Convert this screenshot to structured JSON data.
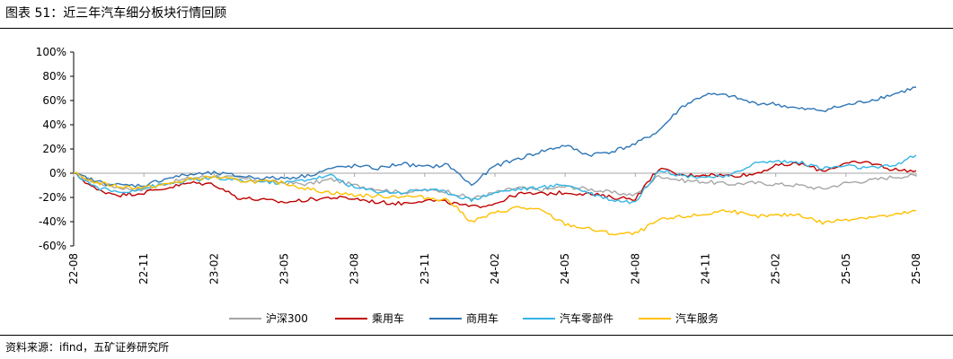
{
  "figure": {
    "title": "图表 51：近三年汽车细分板块行情回顾",
    "source": "资料来源：ifind，五矿证券研究所"
  },
  "chart_data": {
    "type": "line",
    "title": "",
    "xlabel": "",
    "ylabel": "",
    "ylim": [
      -60,
      100
    ],
    "yticks": [
      "100%",
      "80%",
      "60%",
      "40%",
      "20%",
      "0%",
      "-20%",
      "-40%",
      "-60%"
    ],
    "ytick_values": [
      100,
      80,
      60,
      40,
      20,
      0,
      -20,
      -40,
      -60
    ],
    "xticks": [
      "22-08",
      "22-11",
      "23-02",
      "23-05",
      "23-08",
      "23-11",
      "24-02",
      "24-05",
      "24-08",
      "24-11",
      "25-02",
      "25-05",
      "25-08"
    ],
    "x": [
      "22-08",
      "22-09",
      "22-10",
      "22-11",
      "22-12",
      "23-01",
      "23-02",
      "23-03",
      "23-04",
      "23-05",
      "23-06",
      "23-07",
      "23-08",
      "23-09",
      "23-10",
      "23-11",
      "23-12",
      "24-01",
      "24-02",
      "24-03",
      "24-04",
      "24-05",
      "24-06",
      "24-07",
      "24-08",
      "24-09",
      "24-10",
      "24-11",
      "24-12",
      "25-01",
      "25-02",
      "25-03",
      "25-04",
      "25-05",
      "25-06",
      "25-07",
      "25-08"
    ],
    "legend_position": "bottom",
    "grid": false,
    "series": [
      {
        "name": "沪深300",
        "color": "#a6a6a6",
        "values": [
          0,
          -8,
          -12,
          -14,
          -8,
          -4,
          -2,
          -4,
          -6,
          -8,
          -9,
          -5,
          -10,
          -13,
          -16,
          -14,
          -15,
          -21,
          -16,
          -12,
          -14,
          -11,
          -13,
          -16,
          -18,
          -2,
          -6,
          -7,
          -9,
          -8,
          -9,
          -10,
          -13,
          -8,
          -6,
          -3,
          -2
        ]
      },
      {
        "name": "乘用车",
        "color": "#c00000",
        "values": [
          0,
          -14,
          -18,
          -16,
          -12,
          -8,
          -9,
          -20,
          -22,
          -24,
          -22,
          -20,
          -21,
          -24,
          -25,
          -22,
          -24,
          -28,
          -25,
          -17,
          -17,
          -16,
          -17,
          -20,
          -21,
          4,
          -2,
          -1,
          -2,
          -1,
          6,
          8,
          2,
          8,
          9,
          3,
          2
        ]
      },
      {
        "name": "商用车",
        "color": "#2e75b6",
        "values": [
          0,
          -7,
          -10,
          -10,
          -4,
          -1,
          0,
          -2,
          -4,
          -4,
          -2,
          4,
          6,
          4,
          8,
          5,
          7,
          -10,
          6,
          12,
          18,
          23,
          15,
          18,
          24,
          35,
          55,
          65,
          64,
          58,
          57,
          53,
          52,
          56,
          60,
          65,
          71
        ]
      },
      {
        "name": "汽车零部件",
        "color": "#33b5e5",
        "values": [
          0,
          -12,
          -16,
          -12,
          -9,
          -6,
          -4,
          -6,
          -7,
          -8,
          -5,
          -2,
          -12,
          -15,
          -16,
          -13,
          -16,
          -22,
          -16,
          -13,
          -12,
          -9,
          -16,
          -22,
          -24,
          3,
          -2,
          -3,
          -3,
          8,
          10,
          9,
          4,
          6,
          4,
          6,
          15
        ]
      },
      {
        "name": "汽车服务",
        "color": "#ffc000",
        "values": [
          0,
          -8,
          -11,
          -12,
          -9,
          -5,
          -3,
          -6,
          -7,
          -8,
          -13,
          -16,
          -18,
          -19,
          -19,
          -20,
          -22,
          -40,
          -33,
          -28,
          -31,
          -42,
          -46,
          -50,
          -50,
          -39,
          -36,
          -34,
          -30,
          -36,
          -35,
          -34,
          -41,
          -38,
          -36,
          -35,
          -31
        ]
      }
    ]
  }
}
